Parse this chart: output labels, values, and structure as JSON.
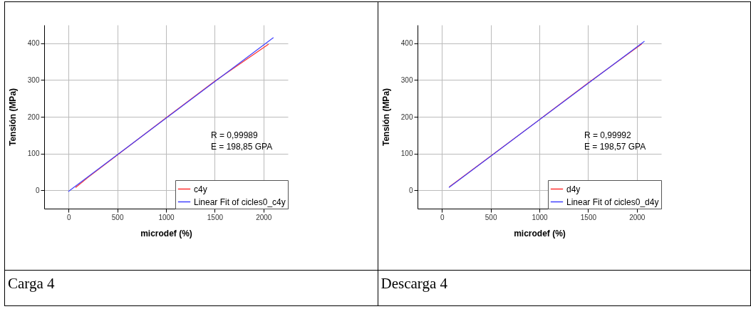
{
  "chart_data": [
    {
      "type": "line",
      "xlabel": "microdef (%)",
      "ylabel": "Tensión (MPa)",
      "xlim": [
        -250,
        2250
      ],
      "ylim": [
        -50,
        450
      ],
      "xticks": [
        0,
        500,
        1000,
        1500,
        2000
      ],
      "yticks": [
        0,
        100,
        200,
        300,
        400
      ],
      "grid": true,
      "legend": "bottom right",
      "annotations": [
        "R = 0,99989",
        "E = 198,85 GPA",
        "Carga 4"
      ],
      "series": [
        {
          "name": "c4y",
          "color": "#ff3030",
          "x": [
            75,
            200,
            500,
            1000,
            1500,
            2050
          ],
          "values": [
            8,
            35,
            96,
            197,
            297,
            397
          ]
        },
        {
          "name": "Linear Fit of cicles0_c4y",
          "color": "#4040ff",
          "x": [
            0,
            2100
          ],
          "values": [
            -3,
            415
          ]
        }
      ]
    },
    {
      "type": "line",
      "xlabel": "microdef (%)",
      "ylabel": "Tensión (MPa)",
      "xlim": [
        -250,
        2250
      ],
      "ylim": [
        -50,
        450
      ],
      "xticks": [
        0,
        500,
        1000,
        1500,
        2000
      ],
      "yticks": [
        0,
        100,
        200,
        300,
        400
      ],
      "grid": true,
      "legend": "bottom right",
      "annotations": [
        "R = 0,99992",
        "E = 198,57 GPA",
        "Descarga 4"
      ],
      "series": [
        {
          "name": "d4y",
          "color": "#ff3030",
          "x": [
            80,
            500,
            1000,
            1500,
            2050
          ],
          "values": [
            10,
            93,
            192,
            292,
            398
          ]
        },
        {
          "name": "Linear Fit of cicles0_d4y",
          "color": "#4040ff",
          "x": [
            75,
            2075
          ],
          "values": [
            8,
            405
          ]
        }
      ]
    }
  ]
}
